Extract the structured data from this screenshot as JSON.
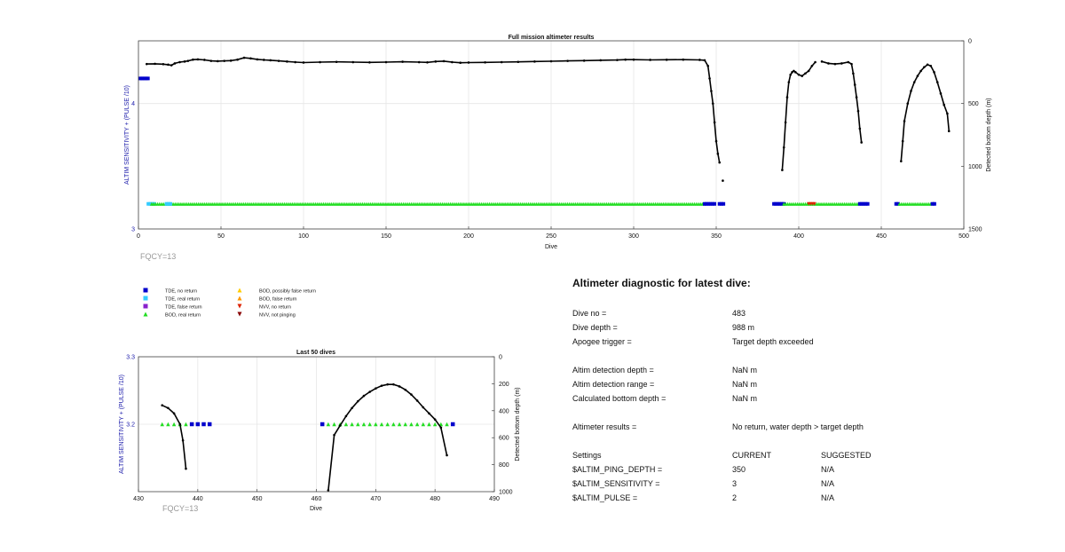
{
  "chart_data": [
    {
      "type": "scatter",
      "title": "Full mission altimeter results",
      "xlabel": "Dive",
      "ylabel": "ALTIM SENSITIVITY + (PULSE /10)",
      "y2label": "Detected bottom depth (m)",
      "xlim": [
        0,
        500
      ],
      "ylim": [
        3,
        4.5
      ],
      "y2lim": [
        1500,
        0
      ],
      "y2_inverted": true,
      "xticks": [
        0,
        50,
        100,
        150,
        200,
        250,
        300,
        350,
        400,
        450,
        500
      ],
      "yticks": [
        3,
        4
      ],
      "y2ticks": [
        0,
        500,
        1000,
        1500
      ],
      "grid": true,
      "annotation": "FQCY=13",
      "bottom_depth_segments": [
        [
          [
            5,
            185
          ],
          [
            10,
            183
          ],
          [
            15,
            186
          ],
          [
            18,
            190
          ],
          [
            20,
            195
          ],
          [
            22,
            180
          ],
          [
            25,
            170
          ],
          [
            28,
            165
          ],
          [
            30,
            160
          ],
          [
            33,
            150
          ],
          [
            36,
            148
          ],
          [
            40,
            152
          ],
          [
            44,
            160
          ],
          [
            48,
            162
          ],
          [
            52,
            160
          ],
          [
            56,
            158
          ],
          [
            60,
            150
          ],
          [
            64,
            135
          ],
          [
            68,
            140
          ],
          [
            72,
            148
          ],
          [
            76,
            152
          ],
          [
            80,
            155
          ],
          [
            85,
            160
          ],
          [
            90,
            165
          ],
          [
            95,
            170
          ],
          [
            100,
            173
          ],
          [
            110,
            170
          ],
          [
            120,
            168
          ],
          [
            130,
            170
          ],
          [
            140,
            172
          ],
          [
            150,
            170
          ],
          [
            160,
            167
          ],
          [
            170,
            170
          ],
          [
            175,
            172
          ],
          [
            180,
            165
          ],
          [
            185,
            162
          ],
          [
            190,
            170
          ],
          [
            195,
            175
          ],
          [
            200,
            173
          ],
          [
            210,
            172
          ],
          [
            220,
            170
          ],
          [
            230,
            168
          ],
          [
            240,
            165
          ],
          [
            250,
            163
          ],
          [
            260,
            160
          ],
          [
            270,
            158
          ],
          [
            280,
            155
          ],
          [
            290,
            153
          ],
          [
            295,
            150
          ],
          [
            300,
            150
          ],
          [
            310,
            152
          ],
          [
            320,
            151
          ],
          [
            330,
            150
          ],
          [
            340,
            152
          ],
          [
            343,
            155
          ],
          [
            345,
            200
          ],
          [
            346,
            300
          ],
          [
            347,
            400
          ],
          [
            348,
            500
          ],
          [
            349,
            650
          ],
          [
            350,
            800
          ],
          [
            351,
            900
          ],
          [
            352,
            970
          ]
        ],
        [
          [
            354,
            1115
          ]
        ],
        [
          [
            390,
            1030
          ],
          [
            391,
            850
          ],
          [
            392,
            650
          ],
          [
            393,
            450
          ],
          [
            394,
            330
          ],
          [
            395,
            270
          ],
          [
            396,
            250
          ],
          [
            397,
            240
          ],
          [
            398,
            250
          ],
          [
            400,
            270
          ],
          [
            402,
            280
          ],
          [
            404,
            260
          ],
          [
            406,
            240
          ],
          [
            408,
            200
          ],
          [
            410,
            170
          ]
        ],
        [
          [
            414,
            165
          ],
          [
            418,
            180
          ],
          [
            422,
            185
          ],
          [
            426,
            180
          ],
          [
            430,
            170
          ],
          [
            432,
            185
          ],
          [
            433,
            260
          ],
          [
            434,
            350
          ],
          [
            435,
            450
          ],
          [
            436,
            560
          ],
          [
            437,
            700
          ],
          [
            438,
            810
          ]
        ],
        [
          [
            462,
            960
          ],
          [
            463,
            800
          ],
          [
            464,
            640
          ],
          [
            466,
            500
          ],
          [
            468,
            400
          ],
          [
            470,
            330
          ],
          [
            472,
            280
          ],
          [
            474,
            240
          ],
          [
            476,
            210
          ],
          [
            478,
            190
          ],
          [
            480,
            200
          ],
          [
            482,
            250
          ],
          [
            484,
            330
          ],
          [
            486,
            420
          ],
          [
            488,
            510
          ],
          [
            490,
            580
          ],
          [
            491,
            720
          ]
        ]
      ],
      "altim_status_segments": [
        {
          "status": "TDE, no return",
          "y": 4.2,
          "from": 1,
          "to": 6
        },
        {
          "status": "TDE, real return",
          "y": 3.2,
          "from": 6,
          "to": 10
        },
        {
          "status": "BOD, real return",
          "y": 3.2,
          "from": 8,
          "to": 343
        },
        {
          "status": "TDE, real return",
          "y": 3.2,
          "from": 17,
          "to": 20
        },
        {
          "status": "TDE, no return",
          "y": 3.2,
          "from": 343,
          "to": 350
        },
        {
          "status": "TDE, no return",
          "y": 3.2,
          "from": 352,
          "to": 355
        },
        {
          "status": "TDE, no return",
          "y": 3.2,
          "from": 385,
          "to": 391
        },
        {
          "status": "BOD, real return",
          "y": 3.2,
          "from": 391,
          "to": 437
        },
        {
          "status": "NVV, no return",
          "y": 3.2,
          "from": 406,
          "to": 410
        },
        {
          "status": "TDE, no return",
          "y": 3.2,
          "from": 437,
          "to": 442
        },
        {
          "status": "TDE, no return",
          "y": 3.2,
          "from": 459,
          "to": 461
        },
        {
          "status": "BOD, real return",
          "y": 3.2,
          "from": 461,
          "to": 481
        },
        {
          "status": "TDE, no return",
          "y": 3.2,
          "from": 481,
          "to": 483
        }
      ]
    },
    {
      "type": "scatter",
      "title": "Last 50 dives",
      "xlabel": "Dive",
      "ylabel": "ALTIM SENSITIVITY + (PULSE /10)",
      "y2label": "Detected bottom depth (m)",
      "xlim": [
        430,
        490
      ],
      "ylim": [
        3.1,
        3.3
      ],
      "y2lim": [
        1000,
        0
      ],
      "y2_inverted": true,
      "xticks": [
        430,
        440,
        450,
        460,
        470,
        480,
        490
      ],
      "yticks": [
        3.2,
        3.3
      ],
      "y2ticks": [
        0,
        200,
        400,
        600,
        800,
        1000
      ],
      "grid": true,
      "annotation": "FQCY=13",
      "bottom_depth_segments": [
        [
          [
            434,
            360
          ],
          [
            435,
            380
          ],
          [
            436,
            420
          ],
          [
            437,
            500
          ],
          [
            437.5,
            620
          ],
          [
            438,
            830
          ]
        ],
        [
          [
            462,
            990
          ],
          [
            463,
            580
          ],
          [
            464,
            510
          ],
          [
            465,
            440
          ],
          [
            466,
            380
          ],
          [
            467,
            330
          ],
          [
            468,
            290
          ],
          [
            469,
            260
          ],
          [
            470,
            235
          ],
          [
            471,
            215
          ],
          [
            472,
            205
          ],
          [
            473,
            205
          ],
          [
            474,
            220
          ],
          [
            475,
            245
          ],
          [
            476,
            280
          ],
          [
            477,
            325
          ],
          [
            478,
            375
          ],
          [
            479,
            420
          ],
          [
            480,
            465
          ],
          [
            481,
            525
          ],
          [
            482,
            730
          ]
        ]
      ],
      "altim_points": [
        {
          "status": "BOD, real return",
          "x": [
            434,
            435,
            436,
            437,
            438
          ],
          "y": 3.2
        },
        {
          "status": "TDE, no return",
          "x": [
            439,
            440,
            441,
            442,
            461
          ],
          "y": 3.2
        },
        {
          "status": "BOD, real return",
          "x": [
            462,
            463,
            464,
            465,
            466,
            467,
            468,
            469,
            470,
            471,
            472,
            473,
            474,
            475,
            476,
            477,
            478,
            479,
            480,
            481,
            482
          ],
          "y": 3.2
        },
        {
          "status": "TDE, no return",
          "x": [
            483
          ],
          "y": 3.2
        }
      ]
    }
  ],
  "legend": [
    {
      "label": "TDE, no return",
      "color": "#0000cc",
      "marker": "square"
    },
    {
      "label": "TDE, real return",
      "color": "#33ccff",
      "marker": "square"
    },
    {
      "label": "TDE, false return",
      "color": "#8822cc",
      "marker": "square"
    },
    {
      "label": "BOD, real return",
      "color": "#22dd22",
      "marker": "triangle"
    },
    {
      "label": "BOD, possibly false return",
      "color": "#ffcc00",
      "marker": "triangle"
    },
    {
      "label": "BOD, false return",
      "color": "#ff9900",
      "marker": "triangle"
    },
    {
      "label": "NVV, no return",
      "color": "#dd2200",
      "marker": "triangle-down"
    },
    {
      "label": "NVV, not pinging",
      "color": "#880000",
      "marker": "triangle-down"
    }
  ],
  "diagnostic": {
    "title": "Altimeter diagnostic for latest dive:",
    "rows": [
      {
        "label": "Dive no =",
        "value": "483"
      },
      {
        "label": "Dive depth =",
        "value": "988 m"
      },
      {
        "label": "Apogee trigger =",
        "value": "Target depth exceeded"
      },
      {
        "label": "Altim detection depth =",
        "value": "NaN m"
      },
      {
        "label": "Altim detection range =",
        "value": "NaN m"
      },
      {
        "label": "Calculated bottom depth =",
        "value": "NaN m"
      },
      {
        "label": "Altimeter results =",
        "value": "No return, water depth > target depth"
      }
    ],
    "settings": {
      "header": {
        "label": "Settings",
        "current": "CURRENT",
        "suggested": "SUGGESTED"
      },
      "rows": [
        {
          "label": "$ALTIM_PING_DEPTH =",
          "current": "350",
          "suggested": "N/A"
        },
        {
          "label": "$ALTIM_SENSITIVITY =",
          "current": "3",
          "suggested": "N/A"
        },
        {
          "label": "$ALTIM_PULSE =",
          "current": "2",
          "suggested": "N/A"
        }
      ]
    }
  },
  "colors": {
    "axis_left": "#1a1aaa",
    "depth_line": "#000000",
    "grid": "#e6e6e6",
    "fqcy": "#999999"
  }
}
